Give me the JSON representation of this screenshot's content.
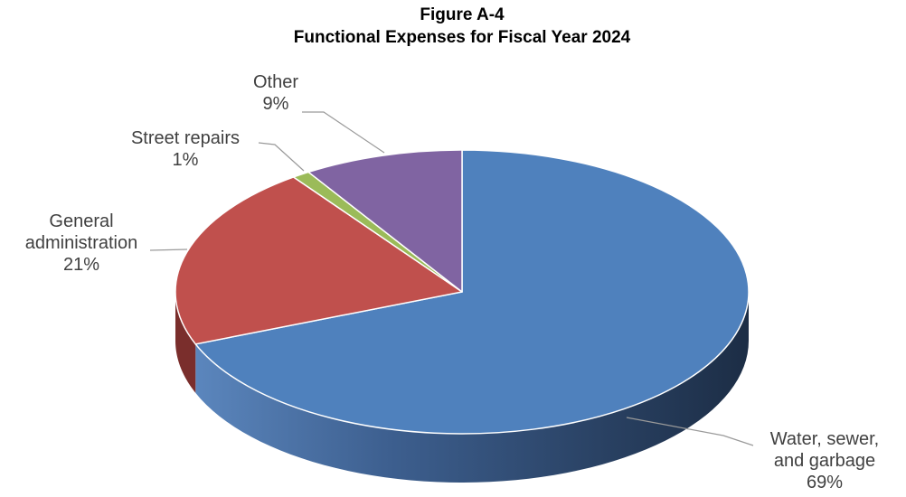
{
  "chart_data": {
    "type": "pie",
    "title": "Figure A-4",
    "subtitle": "Functional Expenses for Fiscal Year 2024",
    "three_d": true,
    "legend": "none",
    "slices": [
      {
        "label_lines": [
          "Water, sewer,",
          "and garbage"
        ],
        "percent_label": "69%",
        "value": 69,
        "color": "#4f81bd",
        "side_color_light": "#4a6fa0",
        "side_color_dark": "#1f3350"
      },
      {
        "label_lines": [
          "General",
          "administration"
        ],
        "percent_label": "21%",
        "value": 21,
        "color": "#c0504d",
        "side_color_light": "#a84442",
        "side_color_dark": "#7a2e2c"
      },
      {
        "label_lines": [
          "Street repairs"
        ],
        "percent_label": "1%",
        "value": 1,
        "color": "#9bbb59",
        "side_color_light": "#7f9a46",
        "side_color_dark": "#5c7032"
      },
      {
        "label_lines": [
          "Other"
        ],
        "percent_label": "9%",
        "value": 9,
        "color": "#8064a2",
        "side_color_light": "#6a5288",
        "side_color_dark": "#4a3a60"
      }
    ]
  }
}
